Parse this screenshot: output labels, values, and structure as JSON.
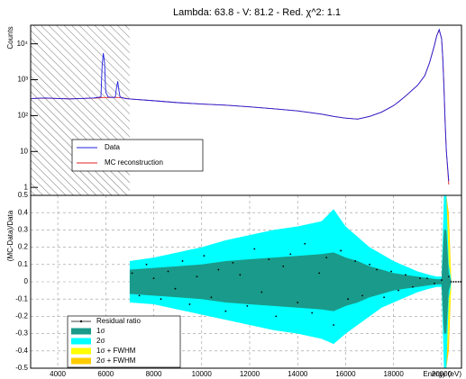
{
  "chart_data": [
    {
      "type": "line",
      "title": "Lambda: 63.8 - V: 81.2 - Red. χ^2: 1.1",
      "y_label": "Counts",
      "log_scale": true,
      "xlim": [
        2870,
        20830
      ],
      "ylim": [
        0.6,
        33000
      ],
      "yticks": [
        1,
        10,
        {
          "value": 100,
          "label": "10²"
        },
        {
          "value": 1000,
          "label": "10³"
        },
        {
          "value": 10000,
          "label": "10⁴"
        }
      ],
      "shaded_region": [
        2870,
        7000
      ],
      "legend": "bottom-left",
      "x": [
        2900,
        3500,
        4000,
        4500,
        5000,
        5500,
        5800,
        5850,
        5900,
        5950,
        6000,
        6100,
        6300,
        6400,
        6450,
        6500,
        6550,
        6600,
        6800,
        7000,
        8000,
        9000,
        10000,
        11000,
        12000,
        13000,
        14000,
        15000,
        15500,
        16000,
        16500,
        17000,
        17500,
        18000,
        18200,
        18500,
        19000,
        19300,
        19500,
        19700,
        19800,
        19900,
        20000,
        20050,
        20100,
        20150,
        20200,
        20300
      ],
      "series": [
        {
          "name": "Data",
          "color": "#2020e0",
          "values": [
            300,
            310,
            300,
            290,
            300,
            310,
            330,
            2500,
            5500,
            3000,
            450,
            330,
            320,
            330,
            600,
            900,
            500,
            330,
            300,
            290,
            260,
            230,
            210,
            195,
            175,
            155,
            135,
            110,
            95,
            85,
            80,
            95,
            125,
            190,
            240,
            350,
            700,
            1300,
            3000,
            9000,
            17000,
            25000,
            14000,
            4000,
            600,
            60,
            10,
            1.5
          ]
        },
        {
          "name": "MC reconstruction",
          "color": "#e02020",
          "values": [
            300,
            305,
            300,
            295,
            300,
            305,
            315,
            320,
            320,
            320,
            320,
            320,
            320,
            320,
            320,
            320,
            320,
            320,
            305,
            290,
            260,
            230,
            210,
            195,
            175,
            155,
            135,
            110,
            95,
            85,
            80,
            95,
            125,
            190,
            240,
            350,
            700,
            1300,
            3000,
            9000,
            17000,
            24000,
            14000,
            4000,
            600,
            60,
            10,
            1.2
          ]
        }
      ]
    },
    {
      "type": "band",
      "y_label": "(MC-Data)/Data",
      "x_label": "Energy (eV)",
      "grid": true,
      "legend": "bottom-left",
      "xlim": [
        2870,
        20830
      ],
      "ylim": [
        -0.5,
        0.5
      ],
      "xticks": [
        4000,
        6000,
        8000,
        10000,
        12000,
        14000,
        16000,
        18000,
        20000
      ],
      "yticks": [
        -0.5,
        -0.4,
        -0.3,
        -0.2,
        -0.1,
        0,
        0.1,
        0.2,
        0.3,
        0.4,
        0.5
      ],
      "series": [
        {
          "name": "Residual ratio",
          "color": "#000000",
          "x": [
            7100,
            7400,
            7700,
            8000,
            8300,
            8600,
            8900,
            9200,
            9500,
            9800,
            10100,
            10400,
            10700,
            11000,
            11300,
            11600,
            11900,
            12200,
            12500,
            12800,
            13100,
            13400,
            13700,
            14000,
            14300,
            14600,
            14900,
            15200,
            15500,
            15800,
            16100,
            16400,
            16700,
            17000,
            17300,
            17600,
            17900,
            18200,
            18500,
            18800,
            19100,
            19400,
            19700,
            20000,
            20300,
            20400,
            20500,
            20600,
            20700,
            20800
          ],
          "values": [
            0.05,
            -0.08,
            0.1,
            0.02,
            -0.1,
            0.06,
            -0.04,
            0.12,
            -0.13,
            0.03,
            0.15,
            -0.09,
            0.07,
            -0.17,
            0.11,
            0.04,
            -0.14,
            0.19,
            -0.06,
            0.13,
            -0.2,
            0.09,
            0.16,
            -0.12,
            0.22,
            -0.18,
            0.05,
            0.14,
            -0.25,
            0.18,
            -0.1,
            0.12,
            -0.08,
            0.1,
            0.07,
            -0.09,
            0.06,
            -0.05,
            0.04,
            -0.03,
            0.02,
            0.02,
            -0.01,
            0.01,
            0.03,
            0,
            0,
            0,
            0,
            0
          ]
        },
        {
          "name": "1σ",
          "color": "#1a9a8a",
          "x": [
            7000,
            8000,
            9000,
            10000,
            11000,
            12000,
            13000,
            14000,
            15000,
            15500,
            16000,
            16500,
            17000,
            17500,
            18000,
            18500,
            19000,
            19500,
            19800,
            20000,
            20100,
            20200,
            20300,
            20400
          ],
          "upper": [
            0.07,
            0.08,
            0.09,
            0.1,
            0.12,
            0.13,
            0.14,
            0.15,
            0.16,
            0.17,
            0.14,
            0.12,
            0.09,
            0.07,
            0.05,
            0.04,
            0.03,
            0.02,
            0.015,
            0.015,
            0.3,
            0.3,
            0.05,
            0.005
          ],
          "lower": [
            -0.07,
            -0.08,
            -0.09,
            -0.1,
            -0.12,
            -0.13,
            -0.14,
            -0.15,
            -0.16,
            -0.17,
            -0.14,
            -0.12,
            -0.09,
            -0.07,
            -0.05,
            -0.04,
            -0.03,
            -0.02,
            -0.015,
            -0.015,
            -0.3,
            -0.3,
            -0.05,
            -0.005
          ]
        },
        {
          "name": "2σ",
          "color": "#00ffff",
          "x": [
            7000,
            8000,
            9000,
            10000,
            11000,
            12000,
            13000,
            14000,
            15000,
            15500,
            16000,
            16500,
            17000,
            17500,
            18000,
            18500,
            19000,
            19500,
            19800,
            20000,
            20100,
            20200,
            20300,
            20400
          ],
          "upper": [
            0.12,
            0.14,
            0.17,
            0.2,
            0.24,
            0.27,
            0.3,
            0.32,
            0.35,
            0.42,
            0.32,
            0.26,
            0.2,
            0.16,
            0.12,
            0.09,
            0.06,
            0.04,
            0.03,
            0.03,
            0.5,
            0.5,
            0.1,
            0.01
          ],
          "lower": [
            -0.12,
            -0.13,
            -0.16,
            -0.19,
            -0.22,
            -0.25,
            -0.28,
            -0.3,
            -0.33,
            -0.36,
            -0.3,
            -0.25,
            -0.2,
            -0.15,
            -0.12,
            -0.09,
            -0.06,
            -0.04,
            -0.03,
            -0.03,
            -0.5,
            -0.5,
            -0.1,
            -0.01
          ]
        },
        {
          "name": "1σ + FWHM",
          "color": "#ffff00",
          "x": [
            20100,
            20200,
            20300,
            20400
          ],
          "upper": [
            0.2,
            0.45,
            0.3,
            0.02
          ],
          "lower": [
            -0.2,
            -0.45,
            -0.3,
            -0.02
          ]
        },
        {
          "name": "2σ + FWHM",
          "color": "#ffcc00",
          "x": [
            20100,
            20200,
            20300,
            20400
          ],
          "upper": [
            0.3,
            0.5,
            0.4,
            0.03
          ],
          "lower": [
            -0.3,
            -0.5,
            -0.4,
            -0.03
          ]
        }
      ]
    }
  ]
}
